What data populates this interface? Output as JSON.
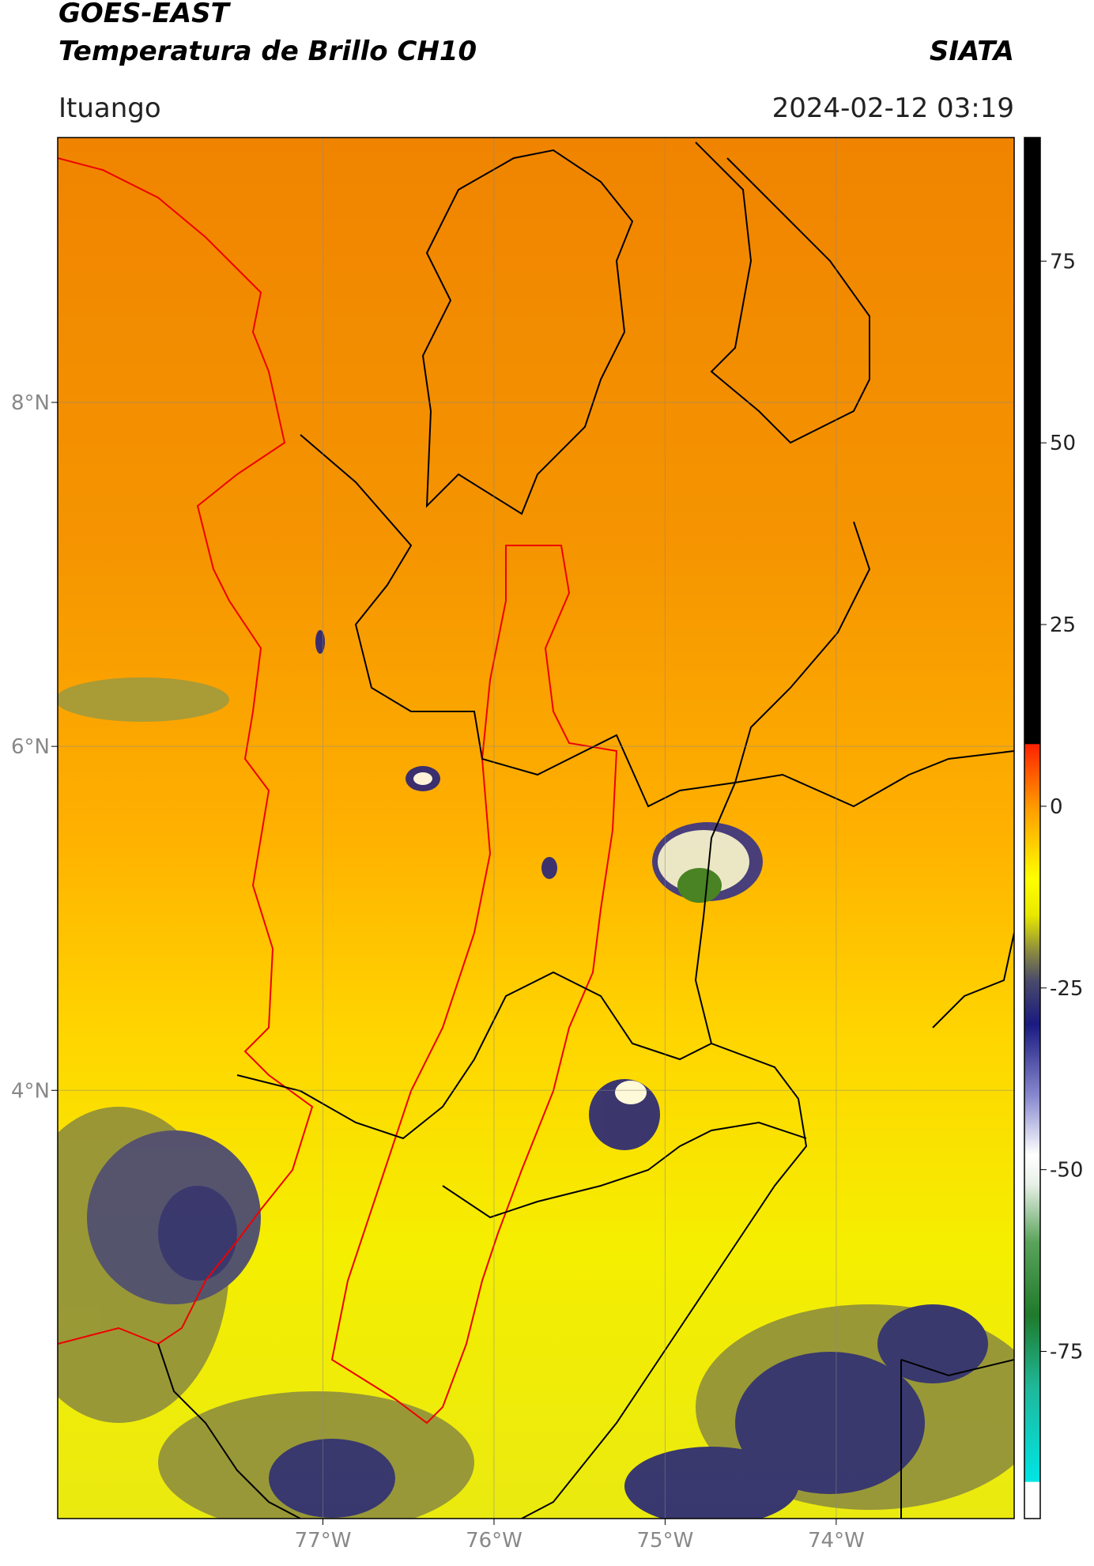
{
  "header": {
    "title": "GOES-EAST",
    "subtitle": "Temperatura de Brillo CH10",
    "brand": "SIATA",
    "location": "Ituango",
    "datetime": "2024-02-12 03:19"
  },
  "chart_data": {
    "type": "map",
    "xlim": [
      -78.55,
      -72.96
    ],
    "ylim": [
      1.51,
      9.54
    ],
    "xticks": [
      {
        "value": -77,
        "label": "77°W"
      },
      {
        "value": -76,
        "label": "76°W"
      },
      {
        "value": -75,
        "label": "75°W"
      },
      {
        "value": -74,
        "label": "74°W"
      }
    ],
    "yticks": [
      {
        "value": 4,
        "label": "4°N"
      },
      {
        "value": 6,
        "label": "6°N"
      },
      {
        "value": 8,
        "label": "8°N"
      }
    ],
    "grid": true,
    "colorbar": {
      "lim": [
        -98,
        92
      ],
      "ticks": [
        -75,
        -50,
        -25,
        0,
        25,
        50,
        75
      ],
      "stops": [
        {
          "value": -98,
          "color": "#ffffff"
        },
        {
          "value": -93,
          "color": "#ffffff"
        },
        {
          "value": -92.9,
          "color": "#00e5e5"
        },
        {
          "value": -80,
          "color": "#1fb89a"
        },
        {
          "value": -70,
          "color": "#1f7a2a"
        },
        {
          "value": -60,
          "color": "#5aa35a"
        },
        {
          "value": -52,
          "color": "#e8f0e8"
        },
        {
          "value": -48,
          "color": "#ffffff"
        },
        {
          "value": -40,
          "color": "#8a8ad0"
        },
        {
          "value": -30,
          "color": "#1a1a80"
        },
        {
          "value": -24,
          "color": "#4a4a6a"
        },
        {
          "value": -20,
          "color": "#8a8a40"
        },
        {
          "value": -15,
          "color": "#e8e800"
        },
        {
          "value": -10,
          "color": "#ffff00"
        },
        {
          "value": 0,
          "color": "#ff9900"
        },
        {
          "value": 8.5,
          "color": "#ff2200"
        },
        {
          "value": 8.6,
          "color": "#000000"
        },
        {
          "value": 92,
          "color": "#000000"
        }
      ]
    }
  }
}
